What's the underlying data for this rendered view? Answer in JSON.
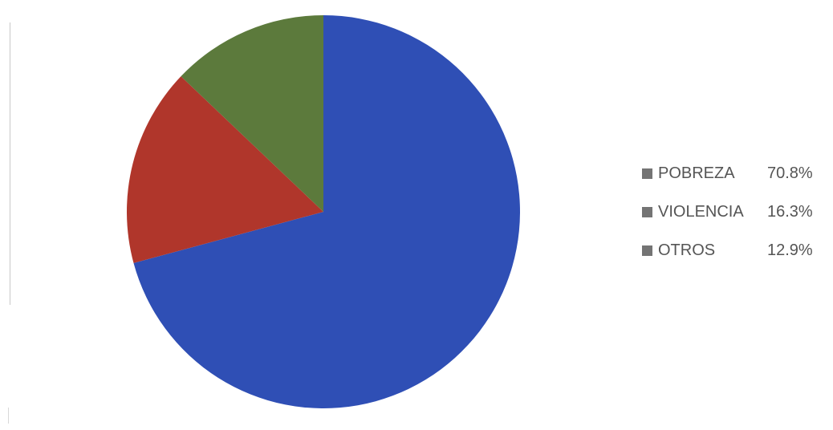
{
  "chart_data": {
    "type": "pie",
    "title": "",
    "start_angle_deg": 0,
    "direction": "clockwise",
    "legend_position": "right",
    "slices": [
      {
        "label": "POBREZA",
        "value": 70.8,
        "value_label": "70.8%",
        "color": "#2f4fb5"
      },
      {
        "label": "VIOLENCIA",
        "value": 16.3,
        "value_label": "16.3%",
        "color": "#b0362b"
      },
      {
        "label": "OTROS",
        "value": 12.9,
        "value_label": "12.9%",
        "color": "#5c7a3c"
      }
    ],
    "legend_swatch_color": "#747474"
  }
}
